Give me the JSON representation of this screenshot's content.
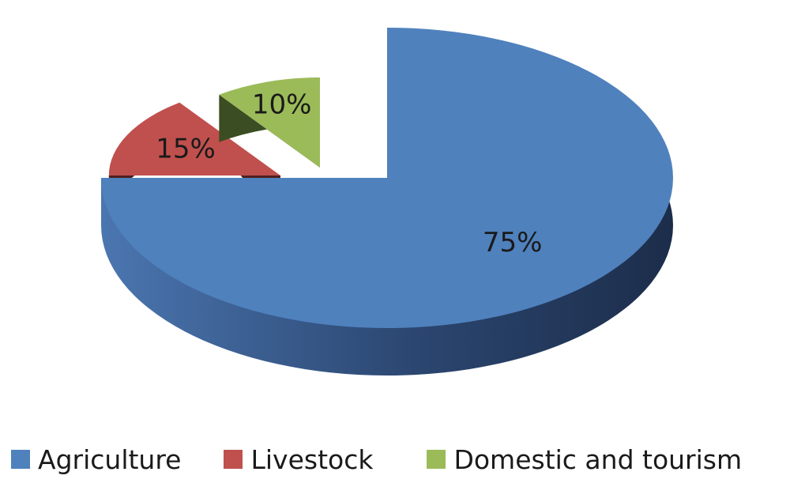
{
  "chart_data": {
    "type": "pie",
    "title": "",
    "categories": [
      "Agriculture",
      "Livestock",
      "Domestic and tourism"
    ],
    "values": [
      75,
      15,
      10
    ],
    "data_labels": [
      "75%",
      "15%",
      "10%"
    ],
    "colors": {
      "Agriculture": "#4f81bd",
      "Livestock": "#c0504d",
      "Domestic and tourism": "#9bbb59"
    },
    "style": "3d-exploded",
    "legend": "bottom"
  }
}
